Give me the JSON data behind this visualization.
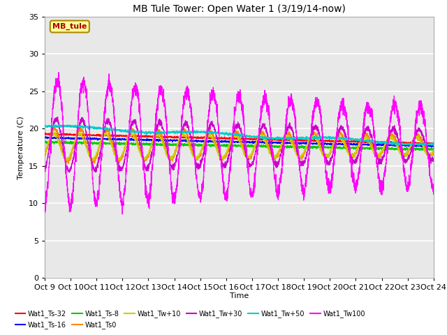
{
  "title": "MB Tule Tower: Open Water 1 (3/19/14-now)",
  "xlabel": "Time",
  "ylabel": "Temperature (C)",
  "ylim": [
    0,
    35
  ],
  "x_tick_labels": [
    "Oct 9",
    "Oct 10",
    "Oct 11",
    "Oct 12",
    "Oct 13",
    "Oct 14",
    "Oct 15",
    "Oct 16",
    "Oct 17",
    "Oct 18",
    "Oct 19",
    "Oct 20",
    "Oct 21",
    "Oct 22",
    "Oct 23",
    "Oct 24"
  ],
  "legend_entries": [
    "Wat1_Ts-32",
    "Wat1_Ts-16",
    "Wat1_Ts-8",
    "Wat1_Ts0",
    "Wat1_Tw+10",
    "Wat1_Tw+30",
    "Wat1_Tw+50",
    "Wat1_Tw100"
  ],
  "legend_colors": [
    "#ff0000",
    "#0000ff",
    "#00cc00",
    "#ff8800",
    "#cccc00",
    "#cc00cc",
    "#00cccc",
    "#ff00ff"
  ],
  "plot_bg_color": "#e8e8e8",
  "annotation_box_text": "MB_tule",
  "annotation_box_color": "#ffff99",
  "annotation_box_edge": "#aa8800",
  "annotation_text_color": "#aa0000"
}
